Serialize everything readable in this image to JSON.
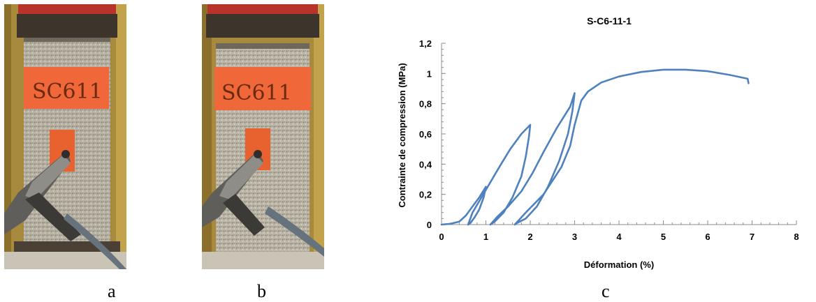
{
  "figure": {
    "captions": {
      "a": "a",
      "b": "b",
      "c": "c"
    },
    "photos": [
      {
        "id": "a",
        "label": "SC611",
        "sleeve_color": "#f0683a"
      },
      {
        "id": "b",
        "label": "SC611",
        "sleeve_color": "#f0683a"
      }
    ]
  },
  "chart_data": {
    "type": "line",
    "title": "S-C6-11-1",
    "xlabel": "Déformation (%)",
    "ylabel": "Contrainte de compression (MPa)",
    "xlim": [
      0,
      8
    ],
    "ylim": [
      0,
      1.2
    ],
    "x_ticks": [
      "0",
      "1",
      "2",
      "3",
      "4",
      "5",
      "6",
      "7",
      "8"
    ],
    "y_ticks": [
      "0",
      "0,2",
      "0,4",
      "0,6",
      "0,8",
      "1",
      "1,2"
    ],
    "grid": false,
    "legend": "none",
    "color": "#4f81bd",
    "series": [
      {
        "x": [
          0,
          0.2,
          0.4,
          0.55,
          0.7,
          0.85,
          1.0,
          0.95,
          0.85,
          0.75,
          0.65,
          0.6,
          0.7,
          0.9,
          1.1,
          1.3,
          1.55,
          1.8,
          2.0,
          1.97,
          1.9,
          1.8,
          1.6,
          1.4,
          1.2,
          1.1,
          1.25,
          1.5,
          1.8,
          2.05,
          2.3,
          2.6,
          2.9,
          3.0,
          2.95,
          2.85,
          2.65,
          2.4,
          2.15,
          1.9,
          1.7,
          1.65,
          1.9,
          2.3,
          2.7,
          2.9,
          3.0,
          3.15,
          3.3,
          3.6,
          4.0,
          4.5,
          5.0,
          5.5,
          6.0,
          6.5,
          6.9,
          6.92
        ],
        "y": [
          0,
          0.005,
          0.02,
          0.06,
          0.12,
          0.18,
          0.25,
          0.18,
          0.1,
          0.05,
          0.01,
          0,
          0.08,
          0.18,
          0.28,
          0.38,
          0.5,
          0.6,
          0.66,
          0.58,
          0.45,
          0.32,
          0.18,
          0.08,
          0.02,
          0,
          0.05,
          0.12,
          0.22,
          0.34,
          0.48,
          0.64,
          0.78,
          0.87,
          0.75,
          0.6,
          0.42,
          0.25,
          0.12,
          0.04,
          0.01,
          0,
          0.08,
          0.2,
          0.38,
          0.52,
          0.66,
          0.82,
          0.88,
          0.94,
          0.98,
          1.01,
          1.025,
          1.025,
          1.015,
          0.99,
          0.965,
          0.935
        ]
      }
    ]
  }
}
